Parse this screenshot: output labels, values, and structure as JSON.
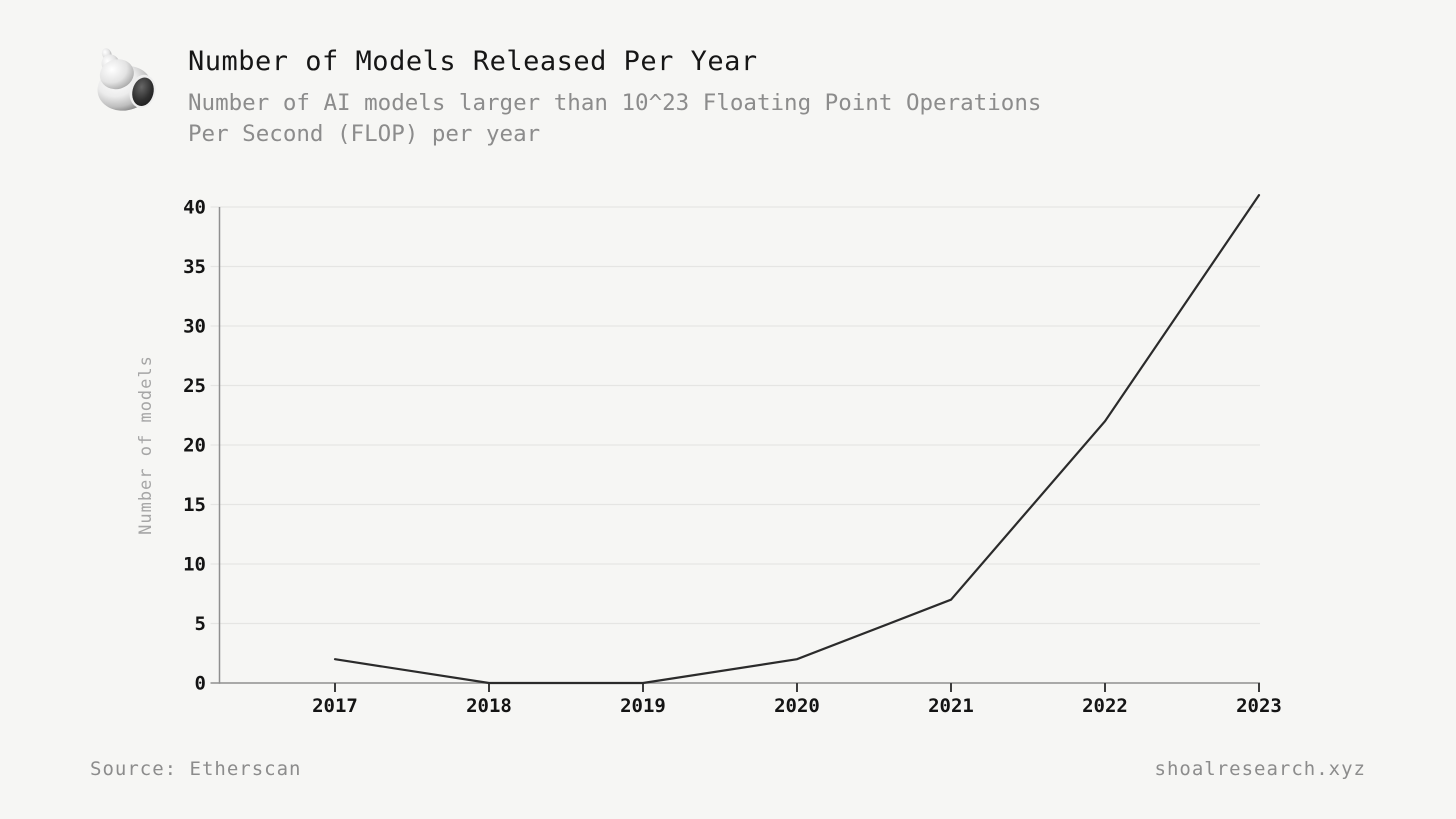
{
  "header": {
    "logo": "snail-shell-logo",
    "title": "Number of Models Released Per Year",
    "subtitle_line1": "Number of AI models larger than 10^23 Floating Point Operations",
    "subtitle_line2": "Per Second (FLOP) per year"
  },
  "chart_data": {
    "type": "line",
    "title": "Number of Models Released Per Year",
    "x": [
      2017,
      2018,
      2019,
      2020,
      2021,
      2022,
      2023
    ],
    "series": [
      {
        "name": "Number of models",
        "values": [
          2,
          0,
          0,
          2,
          7,
          22,
          41
        ]
      }
    ],
    "xlabel": "",
    "ylabel": "Number of models",
    "ylim": [
      0,
      40
    ],
    "yticks": [
      0,
      5,
      10,
      15,
      20,
      25,
      30,
      35,
      40
    ],
    "grid": true,
    "legend": "none"
  },
  "footer": {
    "source": "Source: Etherscan",
    "website": "shoalresearch.xyz"
  },
  "colors": {
    "background": "#f6f6f4",
    "title": "#161616",
    "subtitle": "#8c8c8c",
    "axis": "#8f8f8f",
    "grid": "#e5e5e3",
    "tick_label": "#141414",
    "axis_label": "#a6a6a6",
    "footer_text": "#8c8c8c",
    "line": "#2b2b2b"
  }
}
